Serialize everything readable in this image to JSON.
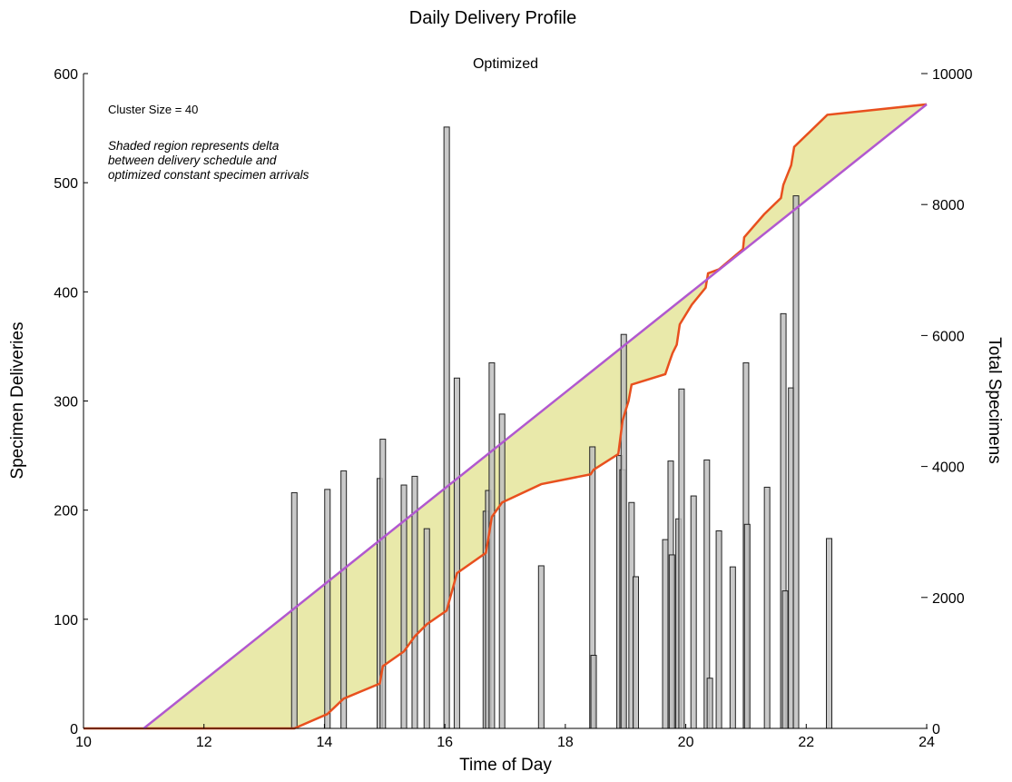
{
  "chart_data": {
    "type": "bar",
    "title": "Daily Delivery Profile",
    "subtitle": "Optimized",
    "xlabel": "Time of Day",
    "ylabel": "Specimen Deliveries",
    "ylabel_right": "Total Specimens",
    "xlim": [
      10,
      24
    ],
    "ylim": [
      0,
      600
    ],
    "ylim_right": [
      0,
      10000
    ],
    "x_ticks": [
      "10",
      "12",
      "14",
      "16",
      "18",
      "20",
      "22",
      "24"
    ],
    "y_ticks": [
      "0",
      "100",
      "200",
      "300",
      "400",
      "500",
      "600"
    ],
    "y_ticks_right": [
      "0",
      "2000",
      "4000",
      "6000",
      "8000",
      "10000"
    ],
    "annotations": {
      "cluster": "Cluster Size = 40",
      "note": [
        "Shaded region represents delta",
        "between delivery schedule and",
        "optimized constant specimen arrivals"
      ]
    },
    "colors": {
      "bar": "#c0c0c0",
      "actual": "#e8501e",
      "optimized": "#b158cf",
      "fill": "#e9e9aa"
    },
    "bars": [
      {
        "x": 13.5,
        "y": 216
      },
      {
        "x": 14.05,
        "y": 219
      },
      {
        "x": 14.32,
        "y": 236
      },
      {
        "x": 14.92,
        "y": 229
      },
      {
        "x": 14.97,
        "y": 265
      },
      {
        "x": 15.32,
        "y": 223
      },
      {
        "x": 15.5,
        "y": 231
      },
      {
        "x": 15.7,
        "y": 183
      },
      {
        "x": 16.03,
        "y": 551
      },
      {
        "x": 16.2,
        "y": 321
      },
      {
        "x": 16.68,
        "y": 199
      },
      {
        "x": 16.72,
        "y": 218
      },
      {
        "x": 16.78,
        "y": 335
      },
      {
        "x": 16.95,
        "y": 288
      },
      {
        "x": 17.6,
        "y": 149
      },
      {
        "x": 18.45,
        "y": 258
      },
      {
        "x": 18.47,
        "y": 67
      },
      {
        "x": 18.9,
        "y": 250
      },
      {
        "x": 18.95,
        "y": 237
      },
      {
        "x": 18.97,
        "y": 361
      },
      {
        "x": 19.1,
        "y": 207
      },
      {
        "x": 19.17,
        "y": 139
      },
      {
        "x": 19.66,
        "y": 173
      },
      {
        "x": 19.75,
        "y": 245
      },
      {
        "x": 19.77,
        "y": 159
      },
      {
        "x": 19.88,
        "y": 192
      },
      {
        "x": 19.93,
        "y": 311
      },
      {
        "x": 20.13,
        "y": 213
      },
      {
        "x": 20.35,
        "y": 246
      },
      {
        "x": 20.4,
        "y": 46
      },
      {
        "x": 20.55,
        "y": 181
      },
      {
        "x": 20.78,
        "y": 148
      },
      {
        "x": 21.0,
        "y": 335
      },
      {
        "x": 21.02,
        "y": 187
      },
      {
        "x": 21.35,
        "y": 221
      },
      {
        "x": 21.62,
        "y": 380
      },
      {
        "x": 21.65,
        "y": 126
      },
      {
        "x": 21.75,
        "y": 312
      },
      {
        "x": 21.83,
        "y": 488
      },
      {
        "x": 22.38,
        "y": 174
      }
    ],
    "series": [
      {
        "values_units": "Total Specimens",
        "points": [
          [
            10.0,
            0
          ],
          [
            13.5,
            0
          ],
          [
            14.05,
            220
          ],
          [
            14.32,
            455
          ],
          [
            14.92,
            685
          ],
          [
            14.97,
            950
          ],
          [
            15.32,
            1175
          ],
          [
            15.5,
            1405
          ],
          [
            15.7,
            1590
          ],
          [
            16.03,
            1800
          ],
          [
            16.2,
            2370
          ],
          [
            16.68,
            2680
          ],
          [
            16.72,
            2890
          ],
          [
            16.78,
            3230
          ],
          [
            16.95,
            3450
          ],
          [
            17.6,
            3730
          ],
          [
            18.42,
            3880
          ],
          [
            18.47,
            3950
          ],
          [
            18.88,
            4190
          ],
          [
            18.95,
            4700
          ],
          [
            19.05,
            5000
          ],
          [
            19.1,
            5250
          ],
          [
            19.66,
            5410
          ],
          [
            19.73,
            5600
          ],
          [
            19.78,
            5730
          ],
          [
            19.85,
            5860
          ],
          [
            19.9,
            6170
          ],
          [
            20.1,
            6470
          ],
          [
            20.33,
            6730
          ],
          [
            20.37,
            6950
          ],
          [
            20.55,
            7010
          ],
          [
            20.95,
            7320
          ],
          [
            20.97,
            7500
          ],
          [
            21.3,
            7850
          ],
          [
            21.58,
            8100
          ],
          [
            21.62,
            8300
          ],
          [
            21.75,
            8600
          ],
          [
            21.8,
            8880
          ],
          [
            22.35,
            9370
          ],
          [
            24.0,
            9530
          ]
        ]
      },
      {
        "values_units": "Total Specimens",
        "points": [
          [
            11.0,
            0
          ],
          [
            24.0,
            9530
          ]
        ]
      }
    ]
  }
}
